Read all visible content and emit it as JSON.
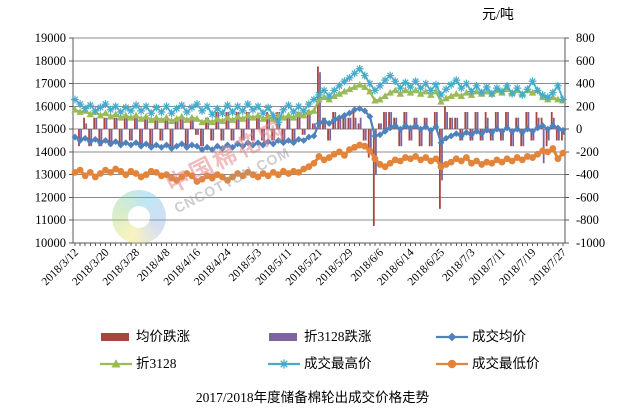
{
  "unit_label": "元/吨",
  "title": "2017/2018年度储备棉轮出成交价格走势",
  "watermark": {
    "cn": "中国棉花网",
    "en": "CNCOTTON.COM"
  },
  "chart_data": {
    "type": "combo-bar-line",
    "title": "2017/2018年度储备棉轮出成交价格走势",
    "right_axis_unit": "元/吨",
    "grid": true,
    "legend_position": "bottom",
    "n_points": 97,
    "x_label_every": 6,
    "x_labels_shown": [
      "2018/3/12",
      "2018/3/20",
      "2018/3/28",
      "2018/4/8",
      "2018/4/16",
      "2018/4/24",
      "2018/5/3",
      "2018/5/11",
      "2018/5/21",
      "2018/5/29",
      "2018/6/6",
      "2018/6/14",
      "2018/6/25",
      "2018/7/3",
      "2018/7/11",
      "2018/7/19",
      "2018/7/27"
    ],
    "left_axis": {
      "min": 10000,
      "max": 19000,
      "step": 1000
    },
    "right_axis": {
      "min": -1000,
      "max": 800,
      "step": 200
    },
    "bar_series": [
      {
        "name": "均价跌涨",
        "axis": "right",
        "color": "#A8453F",
        "values": [
          0,
          -150,
          100,
          -150,
          100,
          -150,
          100,
          -150,
          100,
          -150,
          100,
          -100,
          100,
          -150,
          100,
          -150,
          100,
          -100,
          100,
          -150,
          100,
          100,
          -150,
          100,
          -50,
          -150,
          100,
          -100,
          150,
          -100,
          150,
          -100,
          150,
          -100,
          150,
          -100,
          100,
          -100,
          150,
          -100,
          150,
          -100,
          100,
          -100,
          150,
          -50,
          150,
          50,
          550,
          100,
          -100,
          150,
          100,
          100,
          100,
          150,
          50,
          -100,
          -250,
          -850,
          50,
          150,
          150,
          100,
          -150,
          150,
          -100,
          100,
          -150,
          100,
          -150,
          150,
          -700,
          200,
          100,
          100,
          -100,
          150,
          -100,
          150,
          -100,
          150,
          -100,
          150,
          -100,
          150,
          -150,
          100,
          -150,
          150,
          -100,
          150,
          100,
          -150,
          150,
          -100,
          -100
        ]
      },
      {
        "name": "折3128跌涨",
        "axis": "right",
        "color": "#7E649E",
        "values": [
          0,
          -100,
          50,
          -150,
          100,
          -150,
          100,
          -150,
          100,
          -150,
          100,
          -100,
          100,
          -150,
          100,
          -150,
          100,
          -100,
          100,
          -150,
          100,
          100,
          -150,
          100,
          -50,
          -150,
          100,
          -100,
          150,
          -100,
          150,
          -100,
          150,
          -100,
          150,
          -100,
          100,
          -150,
          100,
          -100,
          150,
          -100,
          100,
          -100,
          150,
          -50,
          150,
          50,
          500,
          100,
          -100,
          150,
          100,
          100,
          100,
          100,
          100,
          -100,
          -200,
          -400,
          50,
          150,
          150,
          100,
          -150,
          150,
          -100,
          100,
          -150,
          100,
          -150,
          150,
          -450,
          150,
          100,
          100,
          -100,
          150,
          -100,
          150,
          -100,
          100,
          -100,
          150,
          -100,
          150,
          -150,
          100,
          -150,
          150,
          -100,
          100,
          -300,
          -100,
          100,
          -100,
          -50
        ]
      }
    ],
    "line_series": [
      {
        "name": "成交均价",
        "axis": "left",
        "color": "#4F81BD",
        "marker": "diamond",
        "line_width": 2.2,
        "values": [
          14650,
          14500,
          14600,
          14450,
          14550,
          14400,
          14500,
          14350,
          14450,
          14300,
          14400,
          14300,
          14400,
          14250,
          14350,
          14200,
          14300,
          14200,
          14300,
          14150,
          14250,
          14350,
          14200,
          14300,
          14250,
          14100,
          14200,
          14100,
          14250,
          14150,
          14300,
          14200,
          14350,
          14250,
          14400,
          14300,
          14400,
          14300,
          14450,
          14350,
          14500,
          14400,
          14500,
          14400,
          14550,
          14500,
          14650,
          14700,
          15250,
          15350,
          15250,
          15400,
          15500,
          15600,
          15700,
          15850,
          15900,
          15800,
          15550,
          14700,
          14750,
          14900,
          15050,
          15150,
          15000,
          15150,
          15050,
          15150,
          15000,
          15100,
          14950,
          15100,
          14400,
          14600,
          14700,
          14800,
          14700,
          14850,
          14750,
          14900,
          14800,
          14950,
          14850,
          15000,
          14900,
          15050,
          14900,
          15000,
          14850,
          15000,
          14900,
          15050,
          15150,
          15000,
          15150,
          15050,
          14950
        ]
      },
      {
        "name": "折3128",
        "axis": "left",
        "color": "#9BBB59",
        "marker": "triangle",
        "line_width": 2.2,
        "values": [
          15850,
          15750,
          15800,
          15650,
          15750,
          15600,
          15700,
          15550,
          15650,
          15500,
          15600,
          15500,
          15600,
          15450,
          15550,
          15400,
          15500,
          15400,
          15500,
          15350,
          15450,
          15550,
          15400,
          15500,
          15450,
          15300,
          15400,
          15300,
          15450,
          15350,
          15500,
          15400,
          15550,
          15450,
          15600,
          15500,
          15600,
          15450,
          15550,
          15450,
          15600,
          15500,
          15600,
          15500,
          15650,
          15600,
          15750,
          15800,
          16300,
          16400,
          16300,
          16450,
          16550,
          16650,
          16750,
          16850,
          16950,
          16850,
          16650,
          16250,
          16300,
          16450,
          16600,
          16700,
          16550,
          16700,
          16600,
          16700,
          16550,
          16650,
          16500,
          16650,
          16200,
          16350,
          16450,
          16550,
          16450,
          16600,
          16500,
          16650,
          16550,
          16650,
          16550,
          16700,
          16600,
          16750,
          16600,
          16700,
          16550,
          16700,
          16600,
          16700,
          16400,
          16300,
          16400,
          16300,
          16250
        ]
      },
      {
        "name": "成交最高价",
        "axis": "left",
        "color": "#46ABC9",
        "marker": "star",
        "line_width": 1.8,
        "values": [
          16300,
          16100,
          15900,
          16050,
          15800,
          15950,
          16100,
          15850,
          16000,
          15750,
          15950,
          15800,
          16050,
          15800,
          16000,
          15700,
          15950,
          15750,
          16000,
          15700,
          15900,
          16050,
          15750,
          15950,
          16100,
          15800,
          16000,
          15650,
          15900,
          15700,
          16050,
          15750,
          16000,
          15800,
          16100,
          15850,
          16000,
          15700,
          15950,
          15600,
          15300,
          15850,
          16050,
          15750,
          16000,
          15800,
          16100,
          16300,
          16500,
          16700,
          16450,
          16700,
          16900,
          17100,
          17250,
          17450,
          17650,
          17350,
          17000,
          16700,
          16900,
          17150,
          17350,
          17100,
          16800,
          17050,
          16850,
          17100,
          16800,
          17000,
          16700,
          16950,
          16500,
          16750,
          16950,
          17150,
          16800,
          17000,
          16650,
          16900,
          16600,
          16850,
          16550,
          16800,
          16650,
          16900,
          16550,
          16800,
          16500,
          16750,
          17100,
          16700,
          16500,
          16400,
          16600,
          16900,
          16300
        ]
      },
      {
        "name": "成交最低价",
        "axis": "left",
        "color": "#E2853B",
        "marker": "circle",
        "line_width": 3,
        "values": [
          13100,
          13200,
          12950,
          13100,
          12900,
          13050,
          13200,
          13100,
          13250,
          13150,
          13000,
          13150,
          13050,
          12900,
          13000,
          13150,
          13100,
          12950,
          13000,
          12850,
          12750,
          12900,
          13050,
          12950,
          12700,
          12800,
          12950,
          12850,
          13000,
          12900,
          12750,
          12900,
          13050,
          12950,
          13100,
          13000,
          12900,
          13050,
          12950,
          13100,
          13000,
          13150,
          13050,
          13150,
          13100,
          13250,
          13350,
          13500,
          13800,
          13650,
          13750,
          13900,
          14000,
          13850,
          14100,
          14200,
          14300,
          14250,
          14050,
          13700,
          13450,
          13350,
          13500,
          13650,
          13600,
          13750,
          13700,
          13800,
          13650,
          13750,
          13600,
          13700,
          13350,
          13450,
          13550,
          13700,
          13600,
          13750,
          13500,
          13600,
          13450,
          13550,
          13500,
          13650,
          13550,
          13700,
          13600,
          13750,
          13650,
          13800,
          13750,
          13900,
          14050,
          14000,
          14150,
          13700,
          13950
        ]
      }
    ]
  }
}
